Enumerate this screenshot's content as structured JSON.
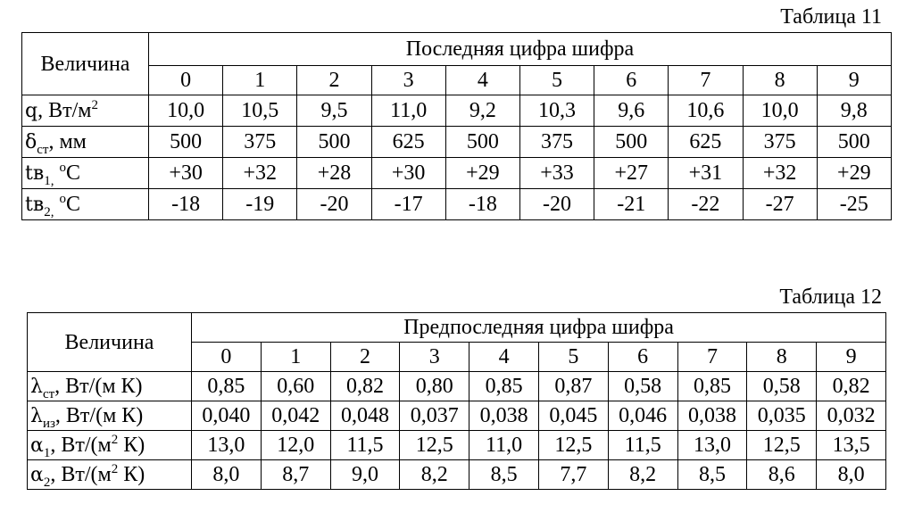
{
  "table11": {
    "caption": "Таблица 11",
    "corner_label": "Величина",
    "header": "Последняя цифра шифра",
    "digits": [
      "0",
      "1",
      "2",
      "3",
      "4",
      "5",
      "6",
      "7",
      "8",
      "9"
    ],
    "rows": [
      {
        "sym": "q",
        "sub": "",
        "unit_pre": ", Вт/м",
        "sup": "2",
        "unit_post": "",
        "values": [
          "10,0",
          "10,5",
          "9,5",
          "11,0",
          "9,2",
          "10,3",
          "9,6",
          "10,6",
          "10,0",
          "9,8"
        ]
      },
      {
        "sym": "δ",
        "sub": "ст",
        "unit_pre": ", мм",
        "sup": "",
        "unit_post": "",
        "values": [
          "500",
          "375",
          "500",
          "625",
          "500",
          "375",
          "500",
          "625",
          "375",
          "500"
        ]
      },
      {
        "sym": "tв",
        "sub": "1,",
        "unit_pre": " ",
        "sup": "o",
        "unit_post": "C",
        "values": [
          "+30",
          "+32",
          "+28",
          "+30",
          "+29",
          "+33",
          "+27",
          "+31",
          "+32",
          "+29"
        ]
      },
      {
        "sym": "tв",
        "sub": "2,",
        "unit_pre": " ",
        "sup": "o",
        "unit_post": "C",
        "values": [
          "-18",
          "-19",
          "-20",
          "-17",
          "-18",
          "-20",
          "-21",
          "-22",
          "-27",
          "-25"
        ]
      }
    ]
  },
  "table12": {
    "caption": "Таблица 12",
    "corner_label": "Величина",
    "header": "Предпоследняя цифра шифра",
    "digits": [
      "0",
      "1",
      "2",
      "3",
      "4",
      "5",
      "6",
      "7",
      "8",
      "9"
    ],
    "rows": [
      {
        "sym": "λ",
        "sub": "ст",
        "unit_pre": ", Вт/(м К)",
        "sup": "",
        "unit_post": "",
        "values": [
          "0,85",
          "0,60",
          "0,82",
          "0,80",
          "0,85",
          "0,87",
          "0,58",
          "0,85",
          "0,58",
          "0,82"
        ]
      },
      {
        "sym": "λ",
        "sub": "из",
        "unit_pre": ", Вт/(м К)",
        "sup": "",
        "unit_post": "",
        "values": [
          "0,040",
          "0,042",
          "0,048",
          "0,037",
          "0,038",
          "0,045",
          "0,046",
          "0,038",
          "0,035",
          "0,032"
        ]
      },
      {
        "sym": "α",
        "sub": "1",
        "unit_pre": ", Вт/(м",
        "sup": "2",
        "unit_post": " К)",
        "values": [
          "13,0",
          "12,0",
          "11,5",
          "12,5",
          "11,0",
          "12,5",
          "11,5",
          "13,0",
          "12,5",
          "13,5"
        ]
      },
      {
        "sym": "α",
        "sub": "2",
        "unit_pre": ", Вт/(м",
        "sup": "2",
        "unit_post": " К)",
        "values": [
          "8,0",
          "8,7",
          "9,0",
          "8,2",
          "8,5",
          "7,7",
          "8,2",
          "8,5",
          "8,6",
          "8,0"
        ]
      }
    ]
  }
}
